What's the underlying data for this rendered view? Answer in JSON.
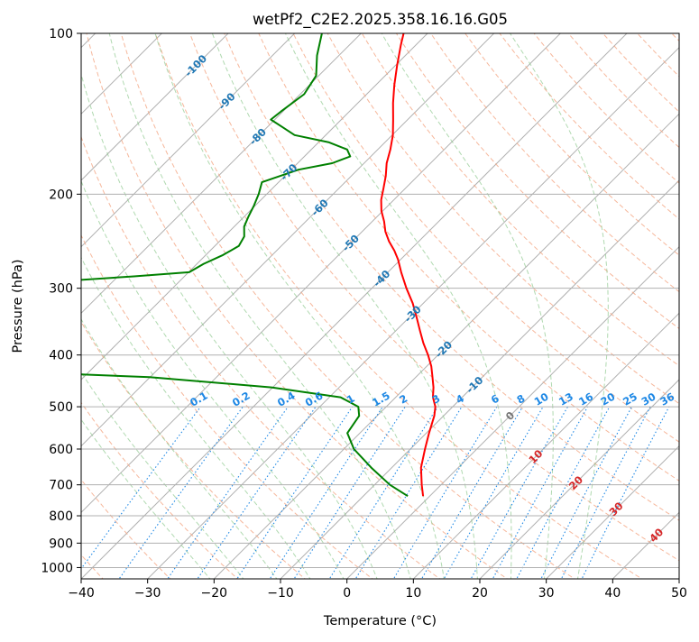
{
  "chart_data": {
    "type": "line",
    "title": "wetPf2_C2E2.2025.358.16.16.G05",
    "xlabel": "Temperature (°C)",
    "ylabel": "Pressure (hPa)",
    "xlim": [
      -40,
      50
    ],
    "ylim": [
      1050,
      100
    ],
    "y_scale": "log",
    "grid": true,
    "x_ticks": [
      -40,
      -30,
      -20,
      -10,
      0,
      10,
      20,
      30,
      40,
      50
    ],
    "y_ticks": [
      100,
      200,
      300,
      400,
      500,
      600,
      700,
      800,
      900,
      1000
    ],
    "series": [
      {
        "name": "",
        "color": "#ff0000",
        "p": [
          735,
          700,
          650,
          600,
          560,
          520,
          500,
          480,
          460,
          440,
          420,
          400,
          380,
          360,
          340,
          320,
          300,
          280,
          265,
          255,
          245,
          235,
          225,
          215,
          205,
          195,
          185,
          175,
          165,
          155,
          145,
          135,
          125,
          115,
          105,
          100
        ],
        "t": [
          -1.0,
          -2.9,
          -5.6,
          -7.8,
          -9.6,
          -11.4,
          -12.6,
          -14.4,
          -15.8,
          -17.5,
          -19.3,
          -21.5,
          -24.0,
          -26.4,
          -28.9,
          -31.6,
          -34.8,
          -38.0,
          -40.4,
          -42.3,
          -44.5,
          -46.5,
          -48.2,
          -50.2,
          -51.9,
          -53.3,
          -54.8,
          -56.6,
          -58.1,
          -59.9,
          -62.2,
          -64.7,
          -67.2,
          -69.7,
          -72.3,
          -73.6
        ]
      },
      {
        "name": "",
        "color": "#008000",
        "p": [
          735,
          700,
          650,
          600,
          560,
          520,
          500,
          480,
          460,
          440,
          430,
          420,
          400,
          390,
          380,
          370,
          360,
          350,
          345,
          340,
          330,
          320,
          310,
          300,
          295,
          290,
          285,
          280,
          270,
          260,
          250,
          240,
          230,
          220,
          210,
          200,
          190,
          180,
          175,
          170,
          165,
          160,
          155,
          150,
          145,
          140,
          130,
          120,
          110,
          100
        ],
        "t": [
          -3.3,
          -7.7,
          -13.1,
          -18.5,
          -21.9,
          -22.7,
          -24.2,
          -28.3,
          -40.2,
          -60.1,
          -81.7,
          -96.4,
          -101.7,
          -85.5,
          -77.5,
          -87.3,
          -102.5,
          -115.0,
          -115.5,
          -110.0,
          -104.0,
          -98.0,
          -92.0,
          -86.7,
          -87.0,
          -86.1,
          -77.6,
          -69.9,
          -69.0,
          -67.4,
          -66.4,
          -67.0,
          -68.5,
          -69.4,
          -70.2,
          -71.2,
          -72.5,
          -68.9,
          -64.8,
          -63.1,
          -64.6,
          -68.4,
          -74.7,
          -77.6,
          -80.6,
          -80.3,
          -79.4,
          -80.4,
          -83.3,
          -85.9
        ]
      }
    ],
    "isotherm_labels": [
      -100,
      -90,
      -80,
      -70,
      -60,
      -50,
      -40,
      -30,
      -20,
      -10,
      0,
      10,
      20,
      30,
      40
    ],
    "mixing_ratio_labels": [
      "0.1",
      "0.2",
      "0.4",
      "0.6",
      "1",
      "1.5",
      "2",
      "3",
      "4",
      "6",
      "8",
      "10",
      "13",
      "16",
      "20",
      "25",
      "30",
      "36"
    ]
  }
}
